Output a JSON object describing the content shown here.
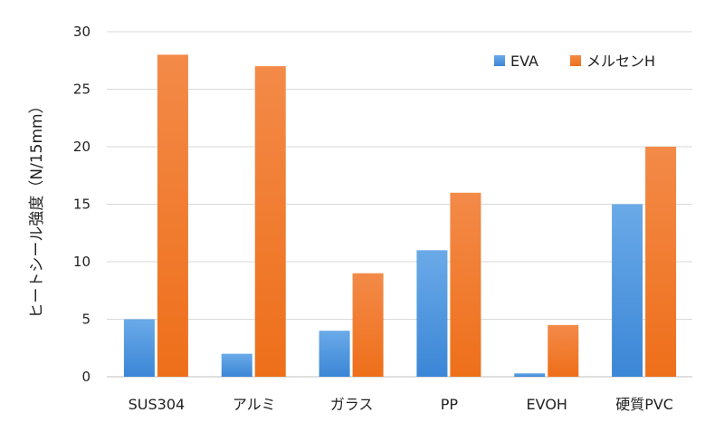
{
  "chart_data": {
    "type": "bar",
    "title": "",
    "xlabel": "",
    "ylabel": "ヒートシール強度（N/15mm）",
    "ylim": [
      0,
      30
    ],
    "yticks": [
      0,
      5,
      10,
      15,
      20,
      25,
      30
    ],
    "grid": true,
    "legend_position": "top-right",
    "categories": [
      "SUS304",
      "アルミ",
      "ガラス",
      "PP",
      "EVOH",
      "硬質PVC"
    ],
    "series": [
      {
        "name": "EVA",
        "color": "#4f95dd",
        "values": [
          5,
          2,
          4,
          11,
          0.3,
          15
        ]
      },
      {
        "name": "メルセンH",
        "color": "#f07a28",
        "values": [
          28,
          27,
          9,
          16,
          4.5,
          20
        ]
      }
    ]
  }
}
